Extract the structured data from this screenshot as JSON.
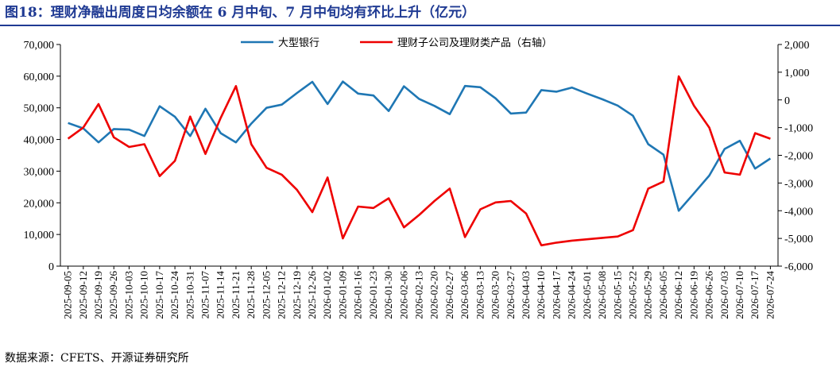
{
  "header": {
    "title": "图18：理财净融出周度日均余额在 6 月中旬、7 月中旬均有环比上升（亿元）"
  },
  "footer": {
    "source": "数据来源：CFETS、开源证券研究所"
  },
  "chart_data": {
    "type": "line",
    "title": "图18：理财净融出周度日均余额在 6 月中旬、7 月中旬均有环比上升（亿元）",
    "categories": [
      "2025-09-05",
      "2025-09-12",
      "2025-09-19",
      "2025-09-26",
      "2025-10-03",
      "2025-10-10",
      "2025-10-17",
      "2025-10-24",
      "2025-10-31",
      "2025-11-07",
      "2025-11-14",
      "2025-11-21",
      "2025-11-28",
      "2025-12-05",
      "2025-12-12",
      "2025-12-19",
      "2025-12-26",
      "2026-01-02",
      "2026-01-09",
      "2026-01-16",
      "2026-01-23",
      "2026-01-30",
      "2026-02-06",
      "2026-02-13",
      "2026-02-20",
      "2026-02-27",
      "2026-03-06",
      "2026-03-13",
      "2026-03-20",
      "2026-03-27",
      "2026-04-03",
      "2026-04-10",
      "2026-04-17",
      "2026-04-24",
      "2026-05-01",
      "2026-05-08",
      "2026-05-15",
      "2026-05-22",
      "2026-05-29",
      "2026-06-05",
      "2026-06-12",
      "2026-06-19",
      "2026-06-26",
      "2026-07-03",
      "2026-07-10",
      "2026-07-17",
      "2026-07-24"
    ],
    "tick_labels": [
      "2025-09-05",
      "2025-09-12",
      "2025-09-19",
      "2025-09-26",
      "2025-10-03",
      "2025-10-10",
      "2025-10-17",
      "2025-10-24",
      "2025-10-31",
      "2025-11-07",
      "2025-11-14",
      "2025-11-21",
      "2025-11-28",
      "2025-12-05",
      "2025-12-12",
      "2025-12-19",
      "2025-12-26",
      "2026-01-02",
      "2026-01-09",
      "2026-01-16",
      "2026-01-23",
      "2026-01-30",
      "2026-02-06",
      "2026-02-13",
      "2026-02-20",
      "2026-02-27",
      "2026-03-06",
      "2026-03-13",
      "2026-03-20",
      "2026-03-27",
      "2026-04-03",
      "2026-04-10",
      "2026-04-17",
      "2026-04-24",
      "2026-05-01",
      "2026-05-08",
      "2026-05-15",
      "2026-05-22",
      "2026-05-29",
      "2026-06-05",
      "2026-06-12",
      "2026-06-19",
      "2026-06-26",
      "2026-07-03",
      "2026-07-10",
      "2026-07-17",
      "2026-07-24"
    ],
    "series": [
      {
        "name": "大型银行",
        "axis": "left",
        "color": "#1f77b4",
        "values": [
          45200,
          43500,
          39100,
          43300,
          43100,
          41100,
          50500,
          47200,
          41100,
          49700,
          42000,
          39100,
          45000,
          50000,
          51000,
          54700,
          58200,
          51200,
          58300,
          54500,
          53900,
          49000,
          56800,
          52800,
          50600,
          48000,
          56900,
          56500,
          53000,
          48200,
          48500,
          55600,
          55100,
          56400,
          54500,
          52700,
          50700,
          47500,
          38500,
          35200,
          17500,
          23000,
          28600,
          37000,
          39600,
          30800,
          34000
        ]
      },
      {
        "name": "理财子公司及理财类产品（右轴）",
        "axis": "right",
        "color": "#ee0000",
        "values": [
          -1400,
          -1000,
          -150,
          -1350,
          -1700,
          -1600,
          -2750,
          -2200,
          -600,
          -1950,
          -650,
          500,
          -1600,
          -2450,
          -2700,
          -3250,
          -4050,
          -2800,
          -5000,
          -3850,
          -3900,
          -3550,
          -4600,
          -4150,
          -3650,
          -3200,
          -4950,
          -3950,
          -3700,
          -3650,
          -4100,
          -5250,
          -5150,
          -5080,
          -5030,
          -4980,
          -4930,
          -4700,
          -3200,
          -2950,
          850,
          -210,
          -1000,
          -2620,
          -2700,
          -1200,
          -1400
        ]
      }
    ],
    "ylim_left": [
      0,
      70000
    ],
    "yticks_left": [
      0,
      10000,
      20000,
      30000,
      40000,
      50000,
      60000,
      70000
    ],
    "ylim_right": [
      -6000,
      2000
    ],
    "yticks_right": [
      -6000,
      -5000,
      -4000,
      -3000,
      -2000,
      -1000,
      0,
      1000,
      2000
    ],
    "grid": false,
    "legend_position": "top-center",
    "xlabel": "",
    "ylabel": ""
  }
}
